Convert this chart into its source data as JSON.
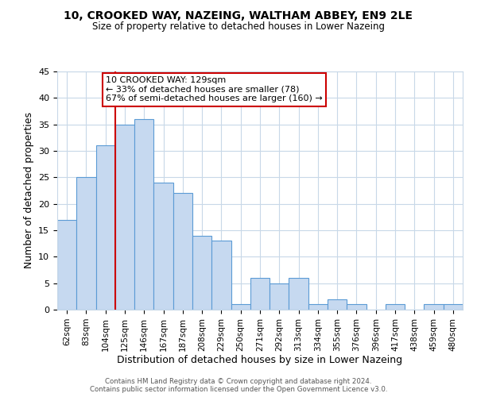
{
  "title": "10, CROOKED WAY, NAZEING, WALTHAM ABBEY, EN9 2LE",
  "subtitle": "Size of property relative to detached houses in Lower Nazeing",
  "xlabel": "Distribution of detached houses by size in Lower Nazeing",
  "ylabel": "Number of detached properties",
  "categories": [
    "62sqm",
    "83sqm",
    "104sqm",
    "125sqm",
    "146sqm",
    "167sqm",
    "187sqm",
    "208sqm",
    "229sqm",
    "250sqm",
    "271sqm",
    "292sqm",
    "313sqm",
    "334sqm",
    "355sqm",
    "376sqm",
    "396sqm",
    "417sqm",
    "438sqm",
    "459sqm",
    "480sqm"
  ],
  "values": [
    17,
    25,
    31,
    35,
    36,
    24,
    22,
    14,
    13,
    1,
    6,
    5,
    6,
    1,
    2,
    1,
    0,
    1,
    0,
    1,
    1
  ],
  "bar_color": "#c6d9f0",
  "bar_edge_color": "#5b9bd5",
  "marker_index": 3,
  "marker_line_color": "#cc0000",
  "annotation_line1": "10 CROOKED WAY: 129sqm",
  "annotation_line2": "← 33% of detached houses are smaller (78)",
  "annotation_line3": "67% of semi-detached houses are larger (160) →",
  "annotation_box_color": "#ffffff",
  "annotation_box_edge": "#cc0000",
  "ylim": [
    0,
    45
  ],
  "yticks": [
    0,
    5,
    10,
    15,
    20,
    25,
    30,
    35,
    40,
    45
  ],
  "footer1": "Contains HM Land Registry data © Crown copyright and database right 2024.",
  "footer2": "Contains public sector information licensed under the Open Government Licence v3.0.",
  "bg_color": "#ffffff",
  "grid_color": "#c8d8e8"
}
